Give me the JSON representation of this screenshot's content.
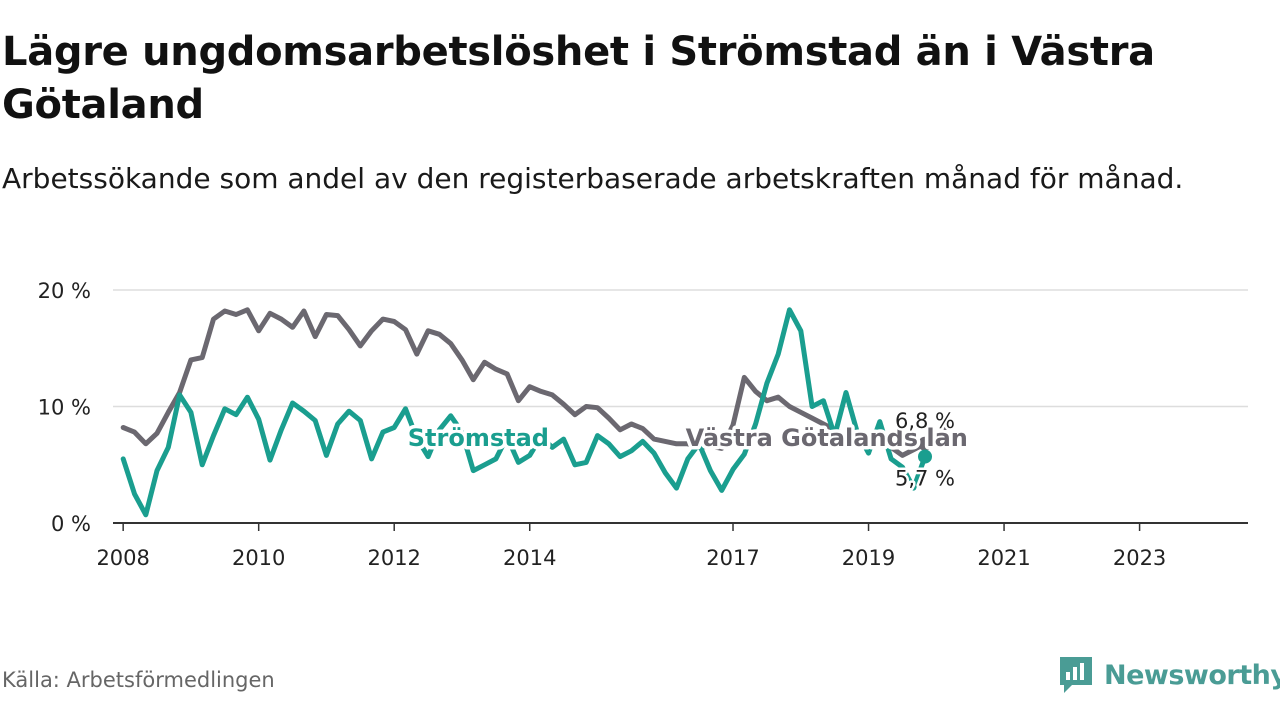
{
  "header": {
    "title": "Lägre ungdomsarbetslöshet i Strömstad än i Västra Götaland",
    "subtitle": "Arbetssökande som andel av den registerbaserade arbetskraften månad för månad."
  },
  "footer": {
    "source": "Källa: Arbetsförmedlingen",
    "brand": "Newsworthy"
  },
  "colors": {
    "stromstad": "#1a9e8f",
    "vastra": "#6b6870",
    "grid": "#dddddd",
    "axis": "#333333",
    "brand": "#4a9c95"
  },
  "chart_data": {
    "type": "line",
    "title": "Lägre ungdomsarbetslöshet i Strömstad än i Västra Götaland",
    "xlabel": "",
    "ylabel": "",
    "x_start": 2008.0,
    "x_step": 0.16666667,
    "xlim": [
      2007.85,
      2024.6
    ],
    "ylim": [
      0,
      20
    ],
    "y_ticks": [
      0,
      10,
      20
    ],
    "y_tick_labels": [
      "0 %",
      "10 %",
      "20 %"
    ],
    "x_ticks": [
      2008,
      2010,
      2012,
      2014,
      2017,
      2019,
      2021,
      2023
    ],
    "x_tick_labels": [
      "2008",
      "2010",
      "2012",
      "2014",
      "2017",
      "2019",
      "2021",
      "2023"
    ],
    "grid": true,
    "series": [
      {
        "name": "Västra Götalands län",
        "values": [
          8.2,
          7.8,
          6.8,
          7.7,
          9.5,
          11.2,
          14.0,
          14.2,
          17.5,
          18.2,
          17.9,
          18.3,
          16.5,
          18.0,
          17.5,
          16.8,
          18.2,
          16.0,
          17.9,
          17.8,
          16.6,
          15.2,
          16.5,
          17.5,
          17.3,
          16.6,
          14.5,
          16.5,
          16.2,
          15.4,
          14.0,
          12.3,
          13.8,
          13.2,
          12.8,
          10.5,
          11.7,
          11.3,
          11.0,
          10.2,
          9.3,
          10.0,
          9.9,
          9.0,
          8.0,
          8.5,
          8.1,
          7.2,
          7.0,
          6.8,
          6.8,
          6.5,
          6.6,
          6.4,
          8.4,
          12.5,
          11.3,
          10.5,
          10.8,
          10.0,
          9.5,
          9.0,
          8.5,
          8.0,
          7.5,
          7.2,
          6.9,
          6.8,
          6.5,
          5.8,
          6.3,
          6.8
        ]
      },
      {
        "name": "Strömstad",
        "values": [
          5.5,
          2.5,
          0.7,
          4.5,
          6.5,
          11.0,
          9.5,
          5.0,
          7.5,
          9.8,
          9.3,
          10.8,
          8.9,
          5.4,
          8.0,
          10.3,
          9.6,
          8.8,
          5.8,
          8.5,
          9.6,
          8.8,
          5.5,
          7.8,
          8.2,
          9.8,
          7.3,
          5.7,
          8.0,
          9.2,
          7.8,
          4.5,
          5.0,
          5.5,
          7.4,
          5.2,
          5.8,
          7.4,
          6.5,
          7.2,
          5.0,
          5.2,
          7.5,
          6.8,
          5.7,
          6.2,
          7.0,
          6.0,
          4.3,
          3.0,
          5.5,
          6.8,
          4.5,
          2.8,
          4.6,
          5.9,
          8.5,
          12.0,
          14.5,
          18.3,
          16.5,
          10.0,
          10.5,
          7.5,
          11.2,
          7.8,
          6.0,
          8.7,
          5.5,
          4.8,
          3.0,
          5.7
        ]
      }
    ],
    "annotations": [
      {
        "series": "Strömstad",
        "text": "Strömstad",
        "x": 2012.2,
        "y": 6.6
      },
      {
        "series": "Västra Götalands län",
        "text": "Västra Götalands län",
        "x": 2016.3,
        "y": 6.6
      },
      {
        "series": "Västra Götalands län",
        "text": "6,8 %"
      },
      {
        "series": "Strömstad",
        "text": "5,7 %"
      }
    ]
  }
}
